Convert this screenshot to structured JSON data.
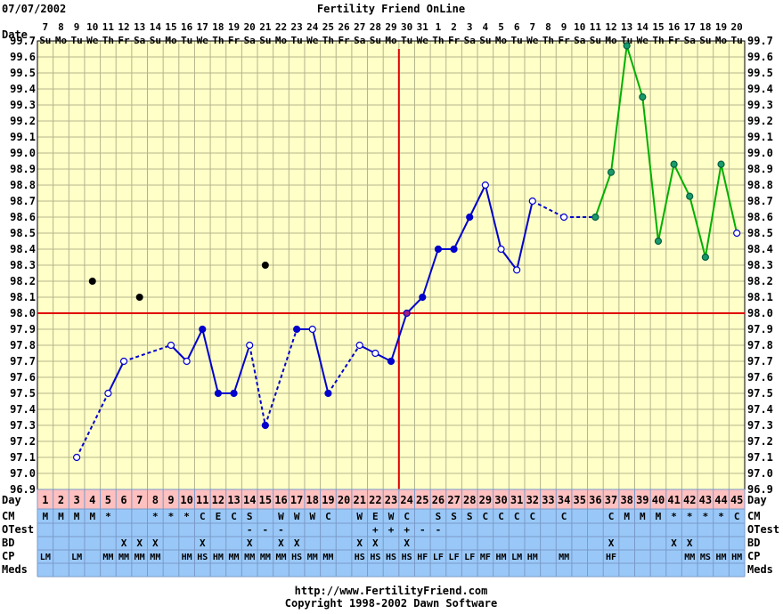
{
  "header": {
    "date": "07/07/2002",
    "title": "Fertility Friend OnLine"
  },
  "footer": {
    "url": "http://www.FertilityFriend.com",
    "copyright": "Copyright 1998-2002 Dawn Software"
  },
  "labels": {
    "date_row": "Date",
    "day_row": "Day",
    "cm_row": "CM",
    "otest_row": "OTest",
    "bd_row": "BD",
    "cp_row": "CP",
    "meds_row": "Meds"
  },
  "colors": {
    "background": "#ffffc8",
    "grid": "#b4b48c",
    "coverline": "#e00000",
    "temp_line": "#0000cc",
    "post_line": "#00b000",
    "day_row_bg": "#ffc0c0",
    "table_bg": "#99c8f8"
  },
  "chart_data": {
    "type": "line",
    "title": "Fertility Friend OnLine",
    "ylim": [
      96.9,
      99.7
    ],
    "yticks": [
      "96.9",
      "97.0",
      "97.1",
      "97.2",
      "97.3",
      "97.4",
      "97.5",
      "97.6",
      "97.7",
      "97.8",
      "97.9",
      "98.0",
      "98.1",
      "98.2",
      "98.3",
      "98.4",
      "98.5",
      "98.6",
      "98.7",
      "98.8",
      "98.9",
      "99.0",
      "99.1",
      "99.2",
      "99.3",
      "99.4",
      "99.5",
      "99.6",
      "99.7"
    ],
    "dates": [
      "7",
      "8",
      "9",
      "10",
      "11",
      "12",
      "13",
      "14",
      "15",
      "16",
      "17",
      "18",
      "19",
      "20",
      "21",
      "22",
      "23",
      "24",
      "25",
      "26",
      "27",
      "28",
      "29",
      "30",
      "31",
      "1",
      "2",
      "3",
      "4",
      "5",
      "6",
      "7",
      "8",
      "9",
      "10",
      "11",
      "12",
      "13",
      "14",
      "15",
      "16",
      "17",
      "18",
      "19",
      "20"
    ],
    "weekdays": [
      "Su",
      "Mo",
      "Tu",
      "We",
      "Th",
      "Fr",
      "Sa",
      "Su",
      "Mo",
      "Tu",
      "We",
      "Th",
      "Fr",
      "Sa",
      "Su",
      "Mo",
      "Tu",
      "We",
      "Th",
      "Fr",
      "Sa",
      "Su",
      "Mo",
      "Tu",
      "We",
      "Th",
      "Fr",
      "Sa",
      "Su",
      "Mo",
      "Tu",
      "We",
      "Th",
      "Fr",
      "Sa",
      "Su",
      "Mo",
      "Tu",
      "We",
      "Th",
      "Fr",
      "Sa",
      "Su",
      "Mo",
      "Tu"
    ],
    "days": [
      1,
      2,
      3,
      4,
      5,
      6,
      7,
      8,
      9,
      10,
      11,
      12,
      13,
      14,
      15,
      16,
      17,
      18,
      19,
      20,
      21,
      22,
      23,
      24,
      25,
      26,
      27,
      28,
      29,
      30,
      31,
      32,
      33,
      34,
      35,
      36,
      37,
      38,
      39,
      40,
      41,
      42,
      43,
      44,
      45
    ],
    "coverline": 98.0,
    "ovulation_day": 23,
    "temps": [
      null,
      null,
      97.1,
      null,
      97.5,
      97.7,
      null,
      null,
      97.8,
      97.7,
      97.9,
      97.5,
      97.5,
      97.8,
      97.3,
      null,
      97.9,
      97.9,
      97.5,
      null,
      97.8,
      97.75,
      97.7,
      98.0,
      98.1,
      98.4,
      98.4,
      98.6,
      98.8,
      98.4,
      98.27,
      98.7,
      null,
      98.6,
      null,
      98.6,
      98.88,
      99.67,
      99.35,
      98.45,
      98.93,
      98.73,
      98.35,
      98.93,
      98.5
    ],
    "temp_status": [
      "",
      "",
      "o",
      "",
      "o",
      "o",
      "",
      "",
      "o",
      "o",
      "f",
      "f",
      "f",
      "o",
      "f",
      "",
      "f",
      "o",
      "f",
      "",
      "o",
      "o",
      "f",
      "f",
      "f",
      "f",
      "f",
      "f",
      "o",
      "o",
      "o",
      "o",
      "",
      "o",
      "",
      "g",
      "g",
      "g",
      "g",
      "g",
      "g",
      "g",
      "g",
      "g",
      "o"
    ],
    "discarded": [
      [
        4,
        98.2
      ],
      [
        7,
        98.1
      ],
      [
        15,
        98.3
      ]
    ],
    "dashed_segments": [
      [
        3,
        5
      ],
      [
        6,
        9
      ],
      [
        14,
        15
      ],
      [
        15,
        17
      ],
      [
        19,
        21
      ],
      [
        32,
        34
      ],
      [
        34,
        36
      ]
    ],
    "cm": [
      "M",
      "M",
      "M",
      "M",
      "*",
      "",
      "",
      "*",
      "*",
      "*",
      "C",
      "E",
      "C",
      "S",
      "",
      "W",
      "W",
      "W",
      "C",
      "",
      "W",
      "E",
      "W",
      "C",
      "",
      "S",
      "S",
      "S",
      "C",
      "C",
      "C",
      "C",
      "",
      "C",
      "",
      "",
      "C",
      "M",
      "M",
      "M",
      "*",
      "*",
      "*",
      "*",
      "C"
    ],
    "otest": [
      "",
      "",
      "",
      "",
      "",
      "",
      "",
      "",
      "",
      "",
      "",
      "",
      "",
      "-",
      "-",
      "-",
      "",
      "",
      "",
      "",
      "",
      "+",
      "+",
      "+",
      "-",
      "-",
      "",
      "",
      "",
      "",
      "",
      "",
      "",
      "",
      "",
      "",
      "",
      "",
      "",
      "",
      "",
      "",
      "",
      "",
      ""
    ],
    "bd": [
      "",
      "",
      "",
      "",
      "",
      "X",
      "X",
      "X",
      "",
      "",
      "X",
      "",
      "",
      "X",
      "",
      "X",
      "X",
      "",
      "",
      "",
      "X",
      "X",
      "",
      "X",
      "",
      "",
      "",
      "",
      "",
      "",
      "",
      "",
      "",
      "",
      "",
      "",
      "X",
      "",
      "",
      "",
      "X",
      "X",
      "",
      "",
      ""
    ],
    "cp": [
      "LM",
      "",
      "LM",
      "",
      "MM",
      "MM",
      "MM",
      "MM",
      "",
      "HM",
      "HS",
      "HM",
      "MM",
      "MM",
      "MM",
      "MM",
      "HS",
      "MM",
      "MM",
      "",
      "HS",
      "HS",
      "HS",
      "HS",
      "HF",
      "LF",
      "LF",
      "LF",
      "MF",
      "HM",
      "LM",
      "HM",
      "",
      "MM",
      "",
      "",
      "HF",
      "",
      "",
      "",
      "",
      "MM",
      "MS",
      "HM",
      "HM"
    ]
  }
}
